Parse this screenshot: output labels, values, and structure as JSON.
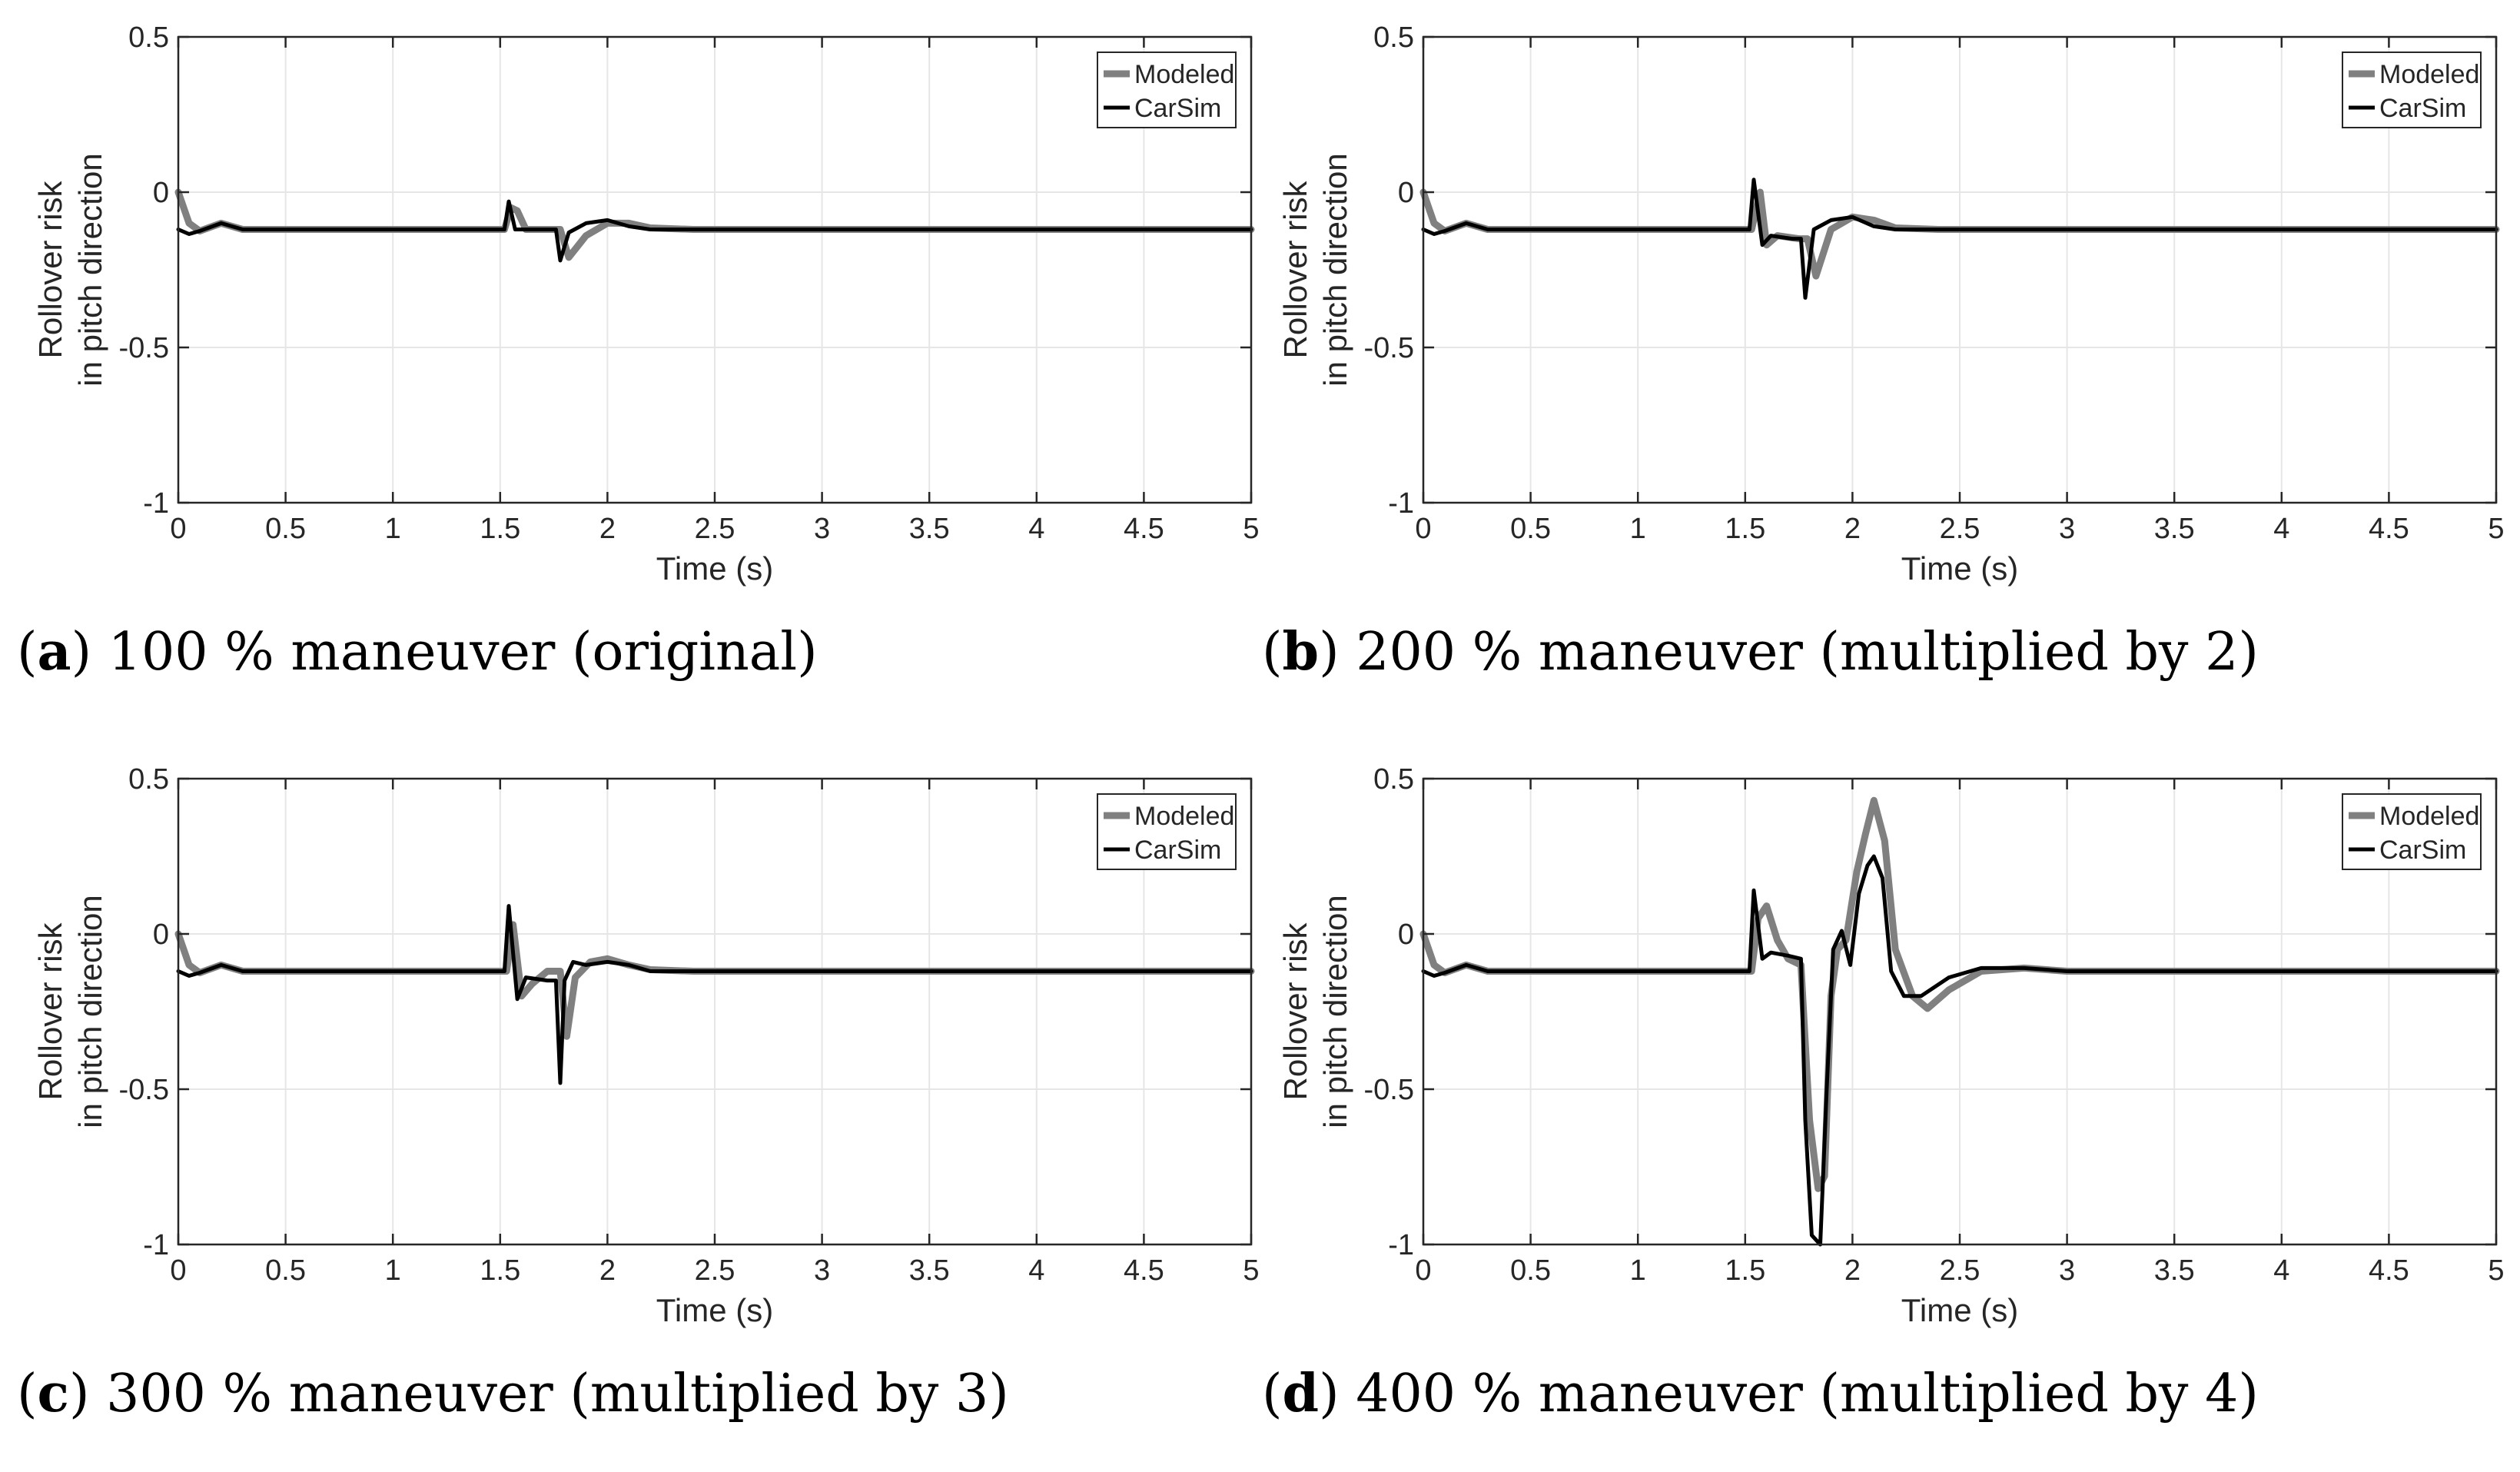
{
  "figure": {
    "panels": [
      {
        "id": "a",
        "letter": "a",
        "caption": ") 100 % maneuver (original)"
      },
      {
        "id": "b",
        "letter": "b",
        "caption": ") 200 % maneuver (multiplied by 2)"
      },
      {
        "id": "c",
        "letter": "c",
        "caption": ") 300 % maneuver (multiplied by 3)"
      },
      {
        "id": "d",
        "letter": "d",
        "caption": ") 400 % maneuver (multiplied by 4)"
      }
    ]
  },
  "colors": {
    "modeled": "#808080",
    "carsim": "#000000",
    "grid": "#e6e6e6",
    "axis": "#262626"
  },
  "chart_data": [
    {
      "type": "line",
      "panel": "a",
      "xlabel": "Time (s)",
      "ylabel": [
        "Rollover risk",
        "in pitch direction"
      ],
      "xlim": [
        0,
        5
      ],
      "ylim": [
        -1,
        0.5
      ],
      "xticks": [
        "0",
        "0.5",
        "1",
        "1.5",
        "2",
        "2.5",
        "3",
        "3.5",
        "4",
        "4.5",
        "5"
      ],
      "yticks": [
        "-1",
        "-0.5",
        "0",
        "0.5"
      ],
      "grid": true,
      "legend_position": "top-right",
      "series": [
        {
          "name": "Modeled",
          "x": [
            0,
            0.05,
            0.1,
            0.2,
            0.3,
            0.5,
            1.0,
            1.5,
            1.52,
            1.55,
            1.58,
            1.62,
            1.7,
            1.78,
            1.82,
            1.9,
            2.0,
            2.1,
            2.2,
            2.4,
            3,
            5
          ],
          "y": [
            0,
            -0.1,
            -0.125,
            -0.1,
            -0.12,
            -0.12,
            -0.12,
            -0.12,
            -0.12,
            -0.05,
            -0.06,
            -0.12,
            -0.12,
            -0.12,
            -0.21,
            -0.14,
            -0.1,
            -0.1,
            -0.115,
            -0.12,
            -0.12,
            -0.12
          ]
        },
        {
          "name": "CarSim",
          "x": [
            0,
            0.05,
            0.1,
            0.2,
            0.3,
            0.5,
            1.0,
            1.5,
            1.52,
            1.54,
            1.57,
            1.6,
            1.7,
            1.76,
            1.78,
            1.82,
            1.9,
            2.0,
            2.1,
            2.2,
            2.4,
            3,
            5
          ],
          "y": [
            -0.12,
            -0.135,
            -0.125,
            -0.1,
            -0.12,
            -0.12,
            -0.12,
            -0.12,
            -0.12,
            -0.03,
            -0.12,
            -0.12,
            -0.12,
            -0.12,
            -0.22,
            -0.13,
            -0.1,
            -0.09,
            -0.11,
            -0.12,
            -0.12,
            -0.12,
            -0.12
          ]
        }
      ]
    },
    {
      "type": "line",
      "panel": "b",
      "xlabel": "Time (s)",
      "ylabel": [
        "Rollover risk",
        "in pitch direction"
      ],
      "xlim": [
        0,
        5
      ],
      "ylim": [
        -1,
        0.5
      ],
      "xticks": [
        "0",
        "0.5",
        "1",
        "1.5",
        "2",
        "2.5",
        "3",
        "3.5",
        "4",
        "4.5",
        "5"
      ],
      "yticks": [
        "-1",
        "-0.5",
        "0",
        "0.5"
      ],
      "grid": true,
      "legend_position": "top-right",
      "series": [
        {
          "name": "Modeled",
          "x": [
            0,
            0.05,
            0.1,
            0.2,
            0.3,
            0.5,
            1.0,
            1.5,
            1.53,
            1.57,
            1.6,
            1.65,
            1.75,
            1.79,
            1.83,
            1.9,
            2.0,
            2.1,
            2.2,
            2.4,
            3,
            5
          ],
          "y": [
            0,
            -0.1,
            -0.125,
            -0.1,
            -0.12,
            -0.12,
            -0.12,
            -0.12,
            -0.12,
            0.0,
            -0.17,
            -0.14,
            -0.15,
            -0.15,
            -0.27,
            -0.12,
            -0.08,
            -0.09,
            -0.115,
            -0.12,
            -0.12,
            -0.12
          ]
        },
        {
          "name": "CarSim",
          "x": [
            0,
            0.05,
            0.1,
            0.2,
            0.3,
            0.5,
            1.0,
            1.5,
            1.52,
            1.54,
            1.58,
            1.62,
            1.72,
            1.76,
            1.78,
            1.82,
            1.9,
            2.0,
            2.1,
            2.2,
            2.4,
            3,
            5
          ],
          "y": [
            -0.12,
            -0.135,
            -0.125,
            -0.1,
            -0.12,
            -0.12,
            -0.12,
            -0.12,
            -0.12,
            0.04,
            -0.17,
            -0.14,
            -0.15,
            -0.15,
            -0.34,
            -0.12,
            -0.09,
            -0.08,
            -0.11,
            -0.12,
            -0.12,
            -0.12,
            -0.12
          ]
        }
      ]
    },
    {
      "type": "line",
      "panel": "c",
      "xlabel": "Time (s)",
      "ylabel": [
        "Rollover risk",
        "in pitch direction"
      ],
      "xlim": [
        0,
        5
      ],
      "ylim": [
        -1,
        0.5
      ],
      "xticks": [
        "0",
        "0.5",
        "1",
        "1.5",
        "2",
        "2.5",
        "3",
        "3.5",
        "4",
        "4.5",
        "5"
      ],
      "yticks": [
        "-1",
        "-0.5",
        "0",
        "0.5"
      ],
      "grid": true,
      "legend_position": "top-right",
      "series": [
        {
          "name": "Modeled",
          "x": [
            0,
            0.05,
            0.1,
            0.2,
            0.3,
            0.5,
            1.0,
            1.5,
            1.53,
            1.56,
            1.6,
            1.65,
            1.72,
            1.78,
            1.81,
            1.85,
            1.92,
            2.0,
            2.1,
            2.2,
            2.4,
            3,
            5
          ],
          "y": [
            0,
            -0.1,
            -0.125,
            -0.1,
            -0.12,
            -0.12,
            -0.12,
            -0.12,
            -0.12,
            0.03,
            -0.2,
            -0.16,
            -0.12,
            -0.12,
            -0.33,
            -0.14,
            -0.09,
            -0.08,
            -0.1,
            -0.115,
            -0.12,
            -0.12,
            -0.12
          ]
        },
        {
          "name": "CarSim",
          "x": [
            0,
            0.05,
            0.1,
            0.2,
            0.3,
            0.5,
            1.0,
            1.5,
            1.52,
            1.54,
            1.58,
            1.62,
            1.72,
            1.76,
            1.78,
            1.8,
            1.84,
            1.9,
            2.0,
            2.1,
            2.2,
            2.4,
            3,
            5
          ],
          "y": [
            -0.12,
            -0.135,
            -0.125,
            -0.1,
            -0.12,
            -0.12,
            -0.12,
            -0.12,
            -0.12,
            0.09,
            -0.21,
            -0.14,
            -0.15,
            -0.15,
            -0.48,
            -0.15,
            -0.09,
            -0.1,
            -0.09,
            -0.1,
            -0.12,
            -0.12,
            -0.12,
            -0.12
          ]
        }
      ]
    },
    {
      "type": "line",
      "panel": "d",
      "xlabel": "Time (s)",
      "ylabel": [
        "Rollover risk",
        "in pitch direction"
      ],
      "xlim": [
        0,
        5
      ],
      "ylim": [
        -1,
        0.5
      ],
      "xticks": [
        "0",
        "0.5",
        "1",
        "1.5",
        "2",
        "2.5",
        "3",
        "3.5",
        "4",
        "4.5",
        "5"
      ],
      "yticks": [
        "-1",
        "-0.5",
        "0",
        "0.5"
      ],
      "grid": true,
      "legend_position": "top-right",
      "series": [
        {
          "name": "Modeled",
          "x": [
            0,
            0.05,
            0.1,
            0.2,
            0.3,
            0.5,
            1.0,
            1.5,
            1.53,
            1.56,
            1.6,
            1.65,
            1.7,
            1.76,
            1.8,
            1.84,
            1.87,
            1.9,
            1.93,
            1.97,
            2.02,
            2.06,
            2.1,
            2.15,
            2.2,
            2.28,
            2.35,
            2.45,
            2.6,
            2.8,
            3,
            5
          ],
          "y": [
            0,
            -0.1,
            -0.125,
            -0.1,
            -0.12,
            -0.12,
            -0.12,
            -0.12,
            -0.12,
            0.05,
            0.09,
            -0.02,
            -0.08,
            -0.1,
            -0.6,
            -0.82,
            -0.78,
            -0.2,
            -0.05,
            -0.02,
            0.2,
            0.32,
            0.43,
            0.3,
            -0.05,
            -0.2,
            -0.24,
            -0.18,
            -0.12,
            -0.11,
            -0.12,
            -0.12
          ]
        },
        {
          "name": "CarSim",
          "x": [
            0,
            0.05,
            0.1,
            0.2,
            0.3,
            0.5,
            1.0,
            1.5,
            1.52,
            1.54,
            1.58,
            1.62,
            1.7,
            1.76,
            1.78,
            1.81,
            1.85,
            1.88,
            1.91,
            1.95,
            1.99,
            2.03,
            2.07,
            2.1,
            2.14,
            2.18,
            2.24,
            2.32,
            2.45,
            2.6,
            2.8,
            3,
            5
          ],
          "y": [
            -0.12,
            -0.135,
            -0.125,
            -0.1,
            -0.12,
            -0.12,
            -0.12,
            -0.12,
            -0.12,
            0.14,
            -0.08,
            -0.06,
            -0.07,
            -0.08,
            -0.6,
            -0.97,
            -1.0,
            -0.5,
            -0.05,
            0.01,
            -0.1,
            0.13,
            0.22,
            0.25,
            0.18,
            -0.12,
            -0.2,
            -0.2,
            -0.14,
            -0.11,
            -0.11,
            -0.12,
            -0.12
          ]
        }
      ]
    }
  ]
}
